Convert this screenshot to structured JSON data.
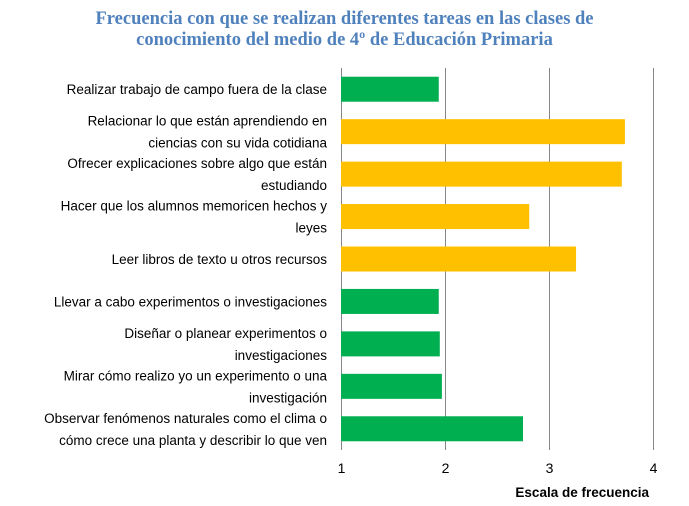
{
  "chart_data": {
    "type": "bar",
    "orientation": "horizontal",
    "title_lines": [
      "Frecuencia con que se realizan diferentes tareas en las clases de",
      "conocimiento del medio de 4º de Educación Primaria"
    ],
    "xlabel": "Escala de frecuencia",
    "ylabel": "",
    "xlim": [
      1,
      4
    ],
    "xticks": [
      "1",
      "2",
      "3",
      "4"
    ],
    "grid": "vertical",
    "legend": "none",
    "categories": [
      {
        "lines": [
          "Realizar trabajo de campo fuera de la clase"
        ]
      },
      {
        "lines": [
          "Relacionar lo que están aprendiendo en",
          "ciencias con su vida cotidiana"
        ]
      },
      {
        "lines": [
          "Ofrecer explicaciones sobre algo que están",
          "estudiando"
        ]
      },
      {
        "lines": [
          "Hacer que los alumnos memoricen hechos y",
          "leyes"
        ]
      },
      {
        "lines": [
          "Leer libros de texto u otros recursos"
        ]
      },
      {
        "lines": [
          "Llevar a cabo experimentos o investigaciones"
        ]
      },
      {
        "lines": [
          "Diseñar o planear experimentos o",
          "investigaciones"
        ]
      },
      {
        "lines": [
          "Mirar cómo realizo yo un experimento o una",
          "investigación"
        ]
      },
      {
        "lines": [
          "Observar fenómenos naturales como el clima o",
          "cómo crece una planta y describir lo que ven"
        ]
      }
    ],
    "values": [
      1.94,
      3.73,
      3.7,
      2.81,
      3.26,
      1.94,
      1.95,
      1.97,
      2.75
    ],
    "bar_colors": [
      "#00b050",
      "#ffc000",
      "#ffc000",
      "#ffc000",
      "#ffc000",
      "#00b050",
      "#00b050",
      "#00b050",
      "#00b050"
    ],
    "colors": {
      "title": "#4f81bd",
      "grid": "#868686",
      "green": "#00b050",
      "orange": "#ffc000"
    }
  }
}
